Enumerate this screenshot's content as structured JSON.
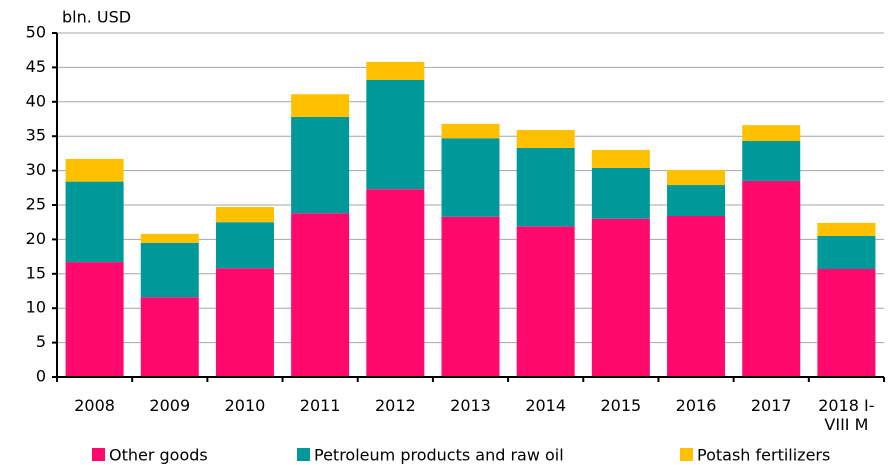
{
  "chart_data": {
    "type": "bar",
    "stacked": true,
    "y_axis_label": "bln. USD",
    "categories": [
      "2008",
      "2009",
      "2010",
      "2011",
      "2012",
      "2013",
      "2014",
      "2015",
      "2016",
      "2017",
      "2018 I-VIII M"
    ],
    "series": [
      {
        "name": "Other goods",
        "color": "#ff0a6c",
        "values": [
          16.7,
          11.6,
          15.8,
          23.8,
          27.3,
          23.3,
          21.9,
          23.0,
          23.4,
          28.5,
          15.7
        ]
      },
      {
        "name": "Petroleum products and raw oil",
        "color": "#009999",
        "values": [
          11.7,
          7.9,
          6.7,
          14.0,
          15.9,
          11.4,
          11.4,
          7.4,
          4.5,
          5.8,
          4.8
        ]
      },
      {
        "name": "Potash fertilizers",
        "color": "#ffc000",
        "values": [
          3.3,
          1.3,
          2.2,
          3.3,
          2.6,
          2.1,
          2.6,
          2.6,
          2.2,
          2.3,
          1.9
        ]
      }
    ],
    "ylim": [
      0,
      50
    ],
    "yticks": [
      0,
      5,
      10,
      15,
      20,
      25,
      30,
      35,
      40,
      45,
      50
    ],
    "grid": true,
    "legend": "bottom"
  }
}
